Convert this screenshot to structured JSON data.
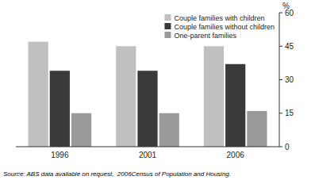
{
  "chart_data": {
    "type": "bar",
    "categories": [
      "1996",
      "2001",
      "2006"
    ],
    "series": [
      {
        "name": "Couple families with children",
        "color": "#c0c0c0",
        "values": [
          47,
          45,
          45
        ]
      },
      {
        "name": "Couple families without children",
        "color": "#3a3a3a",
        "values": [
          34,
          34,
          37
        ]
      },
      {
        "name": "One-parent families",
        "color": "#999999",
        "values": [
          15,
          15,
          16
        ]
      }
    ],
    "ylim": [
      0,
      60
    ],
    "yticks": [
      0,
      15,
      30,
      45,
      60
    ],
    "ylabel": "%",
    "annotations": [
      "Source: ABS data available on request,  2006Census of Population and Housing."
    ],
    "legend": "upper right",
    "grid": false
  }
}
